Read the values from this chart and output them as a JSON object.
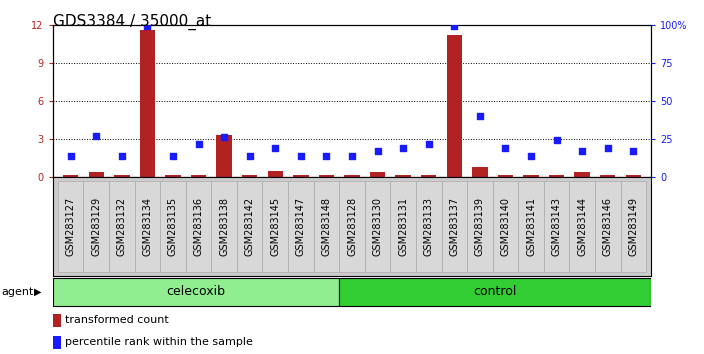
{
  "title": "GDS3384 / 35000_at",
  "samples": [
    "GSM283127",
    "GSM283129",
    "GSM283132",
    "GSM283134",
    "GSM283135",
    "GSM283136",
    "GSM283138",
    "GSM283142",
    "GSM283145",
    "GSM283147",
    "GSM283148",
    "GSM283128",
    "GSM283130",
    "GSM283131",
    "GSM283133",
    "GSM283137",
    "GSM283139",
    "GSM283140",
    "GSM283141",
    "GSM283143",
    "GSM283144",
    "GSM283146",
    "GSM283149"
  ],
  "red_values": [
    0.15,
    0.38,
    0.12,
    11.6,
    0.12,
    0.12,
    3.3,
    0.12,
    0.5,
    0.12,
    0.12,
    0.12,
    0.38,
    0.12,
    0.12,
    11.2,
    0.75,
    0.12,
    0.12,
    0.12,
    0.38,
    0.12,
    0.12
  ],
  "blue_values": [
    14,
    27,
    14,
    99,
    14,
    22,
    26,
    14,
    19,
    14,
    14,
    14,
    17,
    19,
    22,
    99,
    40,
    19,
    14,
    24,
    17,
    19,
    17
  ],
  "celecoxib_count": 11,
  "control_count": 12,
  "ylim_left": [
    0,
    12
  ],
  "ylim_right": [
    0,
    100
  ],
  "yticks_left": [
    0,
    3,
    6,
    9,
    12
  ],
  "yticks_right": [
    0,
    25,
    50,
    75,
    100
  ],
  "bar_color": "#b22222",
  "dot_color": "#1a1aff",
  "celecoxib_color": "#90ee90",
  "control_color": "#32cd32",
  "agent_label": "agent",
  "celecoxib_label": "celecoxib",
  "control_label": "control",
  "legend_red": "transformed count",
  "legend_blue": "percentile rank within the sample",
  "title_fontsize": 11,
  "tick_fontsize": 7,
  "label_fontsize": 9
}
